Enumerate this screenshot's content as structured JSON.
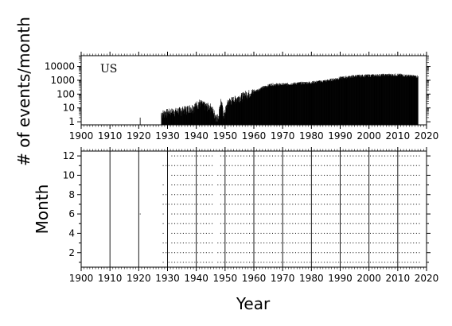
{
  "chart_data": [
    {
      "type": "bar",
      "panel": "top",
      "label": "US",
      "ylabel": "# of events/month",
      "xlabel": "",
      "y_scale": "log",
      "xlim": [
        1900,
        2020
      ],
      "ylim": [
        0.6,
        60000
      ],
      "x_ticks": [
        "1900",
        "1910",
        "1920",
        "1930",
        "1940",
        "1950",
        "1960",
        "1970",
        "1980",
        "1990",
        "2000",
        "2010",
        "2020"
      ],
      "y_ticks": [
        "1",
        "10",
        "100",
        "1000",
        "10000"
      ],
      "series": [
        {
          "x": [
            1920.5,
            1927.8,
            1930,
            1933,
            1936,
            1939,
            1941,
            1943,
            1945,
            1946.5,
            1947.5,
            1948.5,
            1949.5,
            1951,
            1953,
            1955,
            1957,
            1960,
            1963,
            1966,
            1970,
            1975,
            1980,
            1985,
            1990,
            1995,
            2000,
            2005,
            2010,
            2015,
            2017
          ],
          "values": [
            2,
            4,
            5,
            6,
            8,
            12,
            25,
            15,
            12,
            3,
            2,
            35,
            3,
            30,
            40,
            60,
            100,
            150,
            300,
            500,
            500,
            600,
            700,
            900,
            1500,
            2000,
            2200,
            2400,
            2500,
            2000,
            1800
          ]
        }
      ],
      "grid": false
    },
    {
      "type": "scatter",
      "panel": "bottom",
      "ylabel": "Month",
      "xlabel": "Year",
      "xlim": [
        1900,
        2020
      ],
      "ylim": [
        0.5,
        12.5
      ],
      "x_ticks": [
        "1900",
        "1910",
        "1920",
        "1930",
        "1940",
        "1950",
        "1960",
        "1970",
        "1980",
        "1990",
        "2000",
        "2010",
        "2020"
      ],
      "y_ticks": [
        "2",
        "4",
        "6",
        "8",
        "10",
        "12"
      ],
      "vertical_lines": [
        1910,
        1920,
        1930,
        1940,
        1950,
        1960,
        1970,
        1980,
        1990,
        2000,
        2010
      ],
      "coverage": {
        "x_start": 1928,
        "x_end": 2017,
        "months": [
          1,
          2,
          3,
          4,
          5,
          6,
          7,
          8,
          9,
          10,
          11,
          12
        ]
      },
      "grid": false
    }
  ]
}
